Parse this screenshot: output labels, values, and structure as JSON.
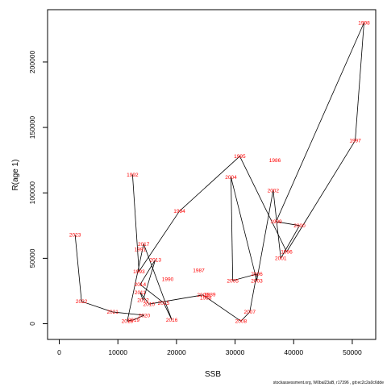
{
  "chart_data": {
    "type": "line",
    "xlabel": "SSB",
    "ylabel": "R(age 1)",
    "xlim": [
      -2000,
      54000
    ],
    "ylim": [
      -12000,
      240000
    ],
    "x_ticks": [
      0,
      10000,
      20000,
      30000,
      40000,
      50000
    ],
    "y_ticks": [
      0,
      50000,
      100000,
      150000,
      200000
    ],
    "line_color": "#000000",
    "label_color": "#ff0000",
    "grid": false,
    "points": [
      {
        "year": "1992",
        "x": 12500,
        "y": 114000
      },
      {
        "year": "1993",
        "x": 13600,
        "y": 40000
      },
      {
        "year": "1994",
        "x": 20500,
        "y": 86000
      },
      {
        "year": "1995",
        "x": 30800,
        "y": 128000
      },
      {
        "year": "1996",
        "x": 38800,
        "y": 55000
      },
      {
        "year": "1997",
        "x": 50500,
        "y": 140000
      },
      {
        "year": "1998",
        "x": 52000,
        "y": 230000
      },
      {
        "year": "1999",
        "x": 37000,
        "y": 78000
      },
      {
        "year": "2000",
        "x": 41000,
        "y": 75000
      },
      {
        "year": "2001",
        "x": 37800,
        "y": 50000
      },
      {
        "year": "2002",
        "x": 36500,
        "y": 102000
      },
      {
        "year": "2003",
        "x": 33700,
        "y": 33000
      },
      {
        "year": "2004",
        "x": 29300,
        "y": 112000
      },
      {
        "year": "2005",
        "x": 29600,
        "y": 33000
      },
      {
        "year": "2006",
        "x": 33700,
        "y": 38000
      },
      {
        "year": "2007",
        "x": 32500,
        "y": 9000
      },
      {
        "year": "2008",
        "x": 31000,
        "y": 2000
      },
      {
        "year": "2009",
        "x": 24500,
        "y": 22000
      },
      {
        "year": "2010",
        "x": 15300,
        "y": 15000
      },
      {
        "year": "2011",
        "x": 13800,
        "y": 24000
      },
      {
        "year": "2012",
        "x": 14300,
        "y": 18000
      },
      {
        "year": "2013",
        "x": 16400,
        "y": 49000
      },
      {
        "year": "2014",
        "x": 13800,
        "y": 30000
      },
      {
        "year": "2015",
        "x": 17800,
        "y": 16000
      },
      {
        "year": "2016",
        "x": 19200,
        "y": 3000
      },
      {
        "year": "2017",
        "x": 14400,
        "y": 61000
      },
      {
        "year": "2018",
        "x": 11600,
        "y": 2000
      },
      {
        "year": "2019",
        "x": 12700,
        "y": 3000
      },
      {
        "year": "2020",
        "x": 14500,
        "y": 6500
      },
      {
        "year": "2021",
        "x": 9100,
        "y": 9000
      },
      {
        "year": "2022",
        "x": 3800,
        "y": 17000
      },
      {
        "year": "2023",
        "x": 2700,
        "y": 68000
      }
    ],
    "extra_labels": [
      {
        "text": "1986",
        "x": 36800,
        "y": 125000
      },
      {
        "text": "1987",
        "x": 23800,
        "y": 41000
      },
      {
        "text": "1988",
        "x": 25000,
        "y": 20000
      },
      {
        "text": "1989",
        "x": 25700,
        "y": 22500
      },
      {
        "text": "1990",
        "x": 18500,
        "y": 34000
      },
      {
        "text": "1991",
        "x": 13800,
        "y": 57000
      }
    ]
  },
  "footer_text": "stockassessment.org, W0bal23aB, r17396 , git:ec2c2a0c6dde"
}
